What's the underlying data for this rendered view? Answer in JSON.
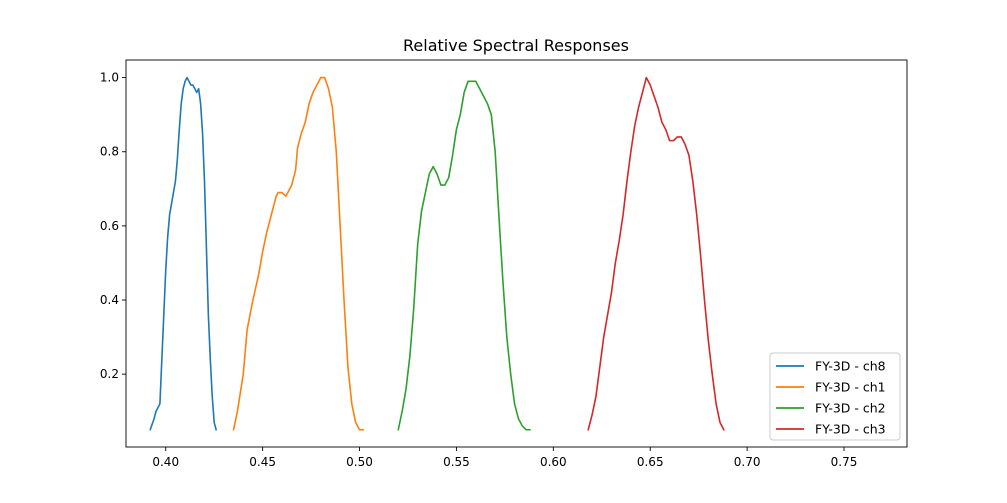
{
  "chart_data": {
    "type": "line",
    "title": "Relative Spectral Responses",
    "xlabel": "",
    "ylabel": "",
    "xlim": [
      0.3795,
      0.7825
    ],
    "ylim": [
      0.0035,
      1.0475
    ],
    "xticks": [
      "0.40",
      "0.45",
      "0.50",
      "0.55",
      "0.60",
      "0.65",
      "0.70",
      "0.75"
    ],
    "xtick_values": [
      0.4,
      0.45,
      0.5,
      0.55,
      0.6,
      0.65,
      0.7,
      0.75
    ],
    "yticks": [
      "0.2",
      "0.4",
      "0.6",
      "0.8",
      "1.0"
    ],
    "ytick_values": [
      0.2,
      0.4,
      0.6,
      0.8,
      1.0
    ],
    "grid": false,
    "legend_position": "lower-right",
    "series": [
      {
        "name": "FY-3D - ch8",
        "color": "#1f77b4",
        "x": [
          0.392,
          0.394,
          0.395,
          0.397,
          0.398,
          0.4,
          0.401,
          0.402,
          0.403,
          0.405,
          0.406,
          0.407,
          0.408,
          0.409,
          0.41,
          0.411,
          0.412,
          0.413,
          0.414,
          0.415,
          0.416,
          0.417,
          0.418,
          0.419,
          0.42,
          0.421,
          0.422,
          0.423,
          0.424,
          0.425,
          0.426
        ],
        "y": [
          0.05,
          0.08,
          0.1,
          0.12,
          0.24,
          0.48,
          0.57,
          0.63,
          0.66,
          0.72,
          0.78,
          0.86,
          0.93,
          0.97,
          0.99,
          1.0,
          0.99,
          0.98,
          0.98,
          0.97,
          0.96,
          0.97,
          0.93,
          0.85,
          0.72,
          0.54,
          0.36,
          0.24,
          0.14,
          0.07,
          0.05
        ]
      },
      {
        "name": "FY-3D - ch1",
        "color": "#ff7f0e",
        "x": [
          0.435,
          0.437,
          0.44,
          0.442,
          0.445,
          0.448,
          0.45,
          0.452,
          0.455,
          0.457,
          0.458,
          0.46,
          0.462,
          0.463,
          0.465,
          0.467,
          0.468,
          0.47,
          0.472,
          0.474,
          0.476,
          0.478,
          0.48,
          0.482,
          0.484,
          0.486,
          0.488,
          0.49,
          0.492,
          0.494,
          0.496,
          0.498,
          0.5,
          0.502
        ],
        "y": [
          0.05,
          0.1,
          0.2,
          0.32,
          0.4,
          0.47,
          0.53,
          0.58,
          0.64,
          0.68,
          0.69,
          0.69,
          0.68,
          0.69,
          0.71,
          0.75,
          0.81,
          0.85,
          0.88,
          0.93,
          0.96,
          0.98,
          1.0,
          1.0,
          0.97,
          0.92,
          0.8,
          0.6,
          0.4,
          0.22,
          0.12,
          0.07,
          0.05,
          0.05
        ]
      },
      {
        "name": "FY-3D - ch2",
        "color": "#2ca02c",
        "x": [
          0.52,
          0.522,
          0.524,
          0.526,
          0.528,
          0.53,
          0.532,
          0.534,
          0.536,
          0.538,
          0.54,
          0.542,
          0.544,
          0.546,
          0.548,
          0.55,
          0.552,
          0.554,
          0.556,
          0.558,
          0.56,
          0.562,
          0.564,
          0.566,
          0.568,
          0.57,
          0.572,
          0.574,
          0.576,
          0.578,
          0.58,
          0.582,
          0.584,
          0.586,
          0.588
        ],
        "y": [
          0.05,
          0.1,
          0.16,
          0.25,
          0.38,
          0.55,
          0.64,
          0.69,
          0.74,
          0.76,
          0.74,
          0.71,
          0.71,
          0.73,
          0.79,
          0.86,
          0.9,
          0.96,
          0.99,
          0.99,
          0.99,
          0.97,
          0.95,
          0.93,
          0.9,
          0.8,
          0.62,
          0.45,
          0.3,
          0.2,
          0.12,
          0.08,
          0.06,
          0.05,
          0.05
        ]
      },
      {
        "name": "FY-3D - ch3",
        "color": "#d62728",
        "x": [
          0.618,
          0.62,
          0.622,
          0.624,
          0.626,
          0.628,
          0.63,
          0.632,
          0.634,
          0.636,
          0.638,
          0.64,
          0.642,
          0.644,
          0.646,
          0.648,
          0.65,
          0.652,
          0.654,
          0.656,
          0.658,
          0.66,
          0.662,
          0.664,
          0.666,
          0.668,
          0.67,
          0.672,
          0.674,
          0.676,
          0.678,
          0.68,
          0.682,
          0.684,
          0.686,
          0.688
        ],
        "y": [
          0.05,
          0.09,
          0.14,
          0.22,
          0.3,
          0.36,
          0.42,
          0.5,
          0.56,
          0.63,
          0.72,
          0.8,
          0.87,
          0.92,
          0.96,
          1.0,
          0.98,
          0.95,
          0.92,
          0.88,
          0.86,
          0.83,
          0.83,
          0.84,
          0.84,
          0.82,
          0.79,
          0.72,
          0.63,
          0.52,
          0.4,
          0.29,
          0.2,
          0.12,
          0.07,
          0.05
        ]
      }
    ]
  }
}
